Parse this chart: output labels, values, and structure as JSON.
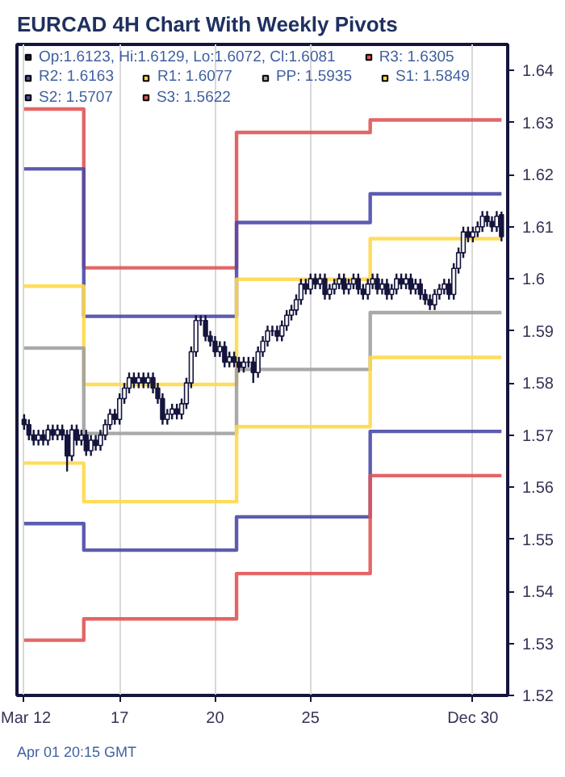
{
  "chart_data": {
    "type": "candlestick",
    "title": "EURCAD 4H Chart With Weekly Pivots",
    "annotations": [
      "Apr 01 20:15 GMT"
    ],
    "categories": [
      "Mar 12",
      null,
      null,
      null,
      null,
      null,
      null,
      null,
      null,
      null,
      null,
      null,
      null,
      null,
      null,
      null,
      null,
      null,
      null,
      null,
      "17",
      null,
      null,
      null,
      null,
      null,
      null,
      null,
      null,
      null,
      null,
      null,
      null,
      null,
      null,
      null,
      null,
      null,
      null,
      null,
      "20",
      null,
      null,
      null,
      null,
      null,
      null,
      null,
      null,
      null,
      null,
      null,
      null,
      null,
      null,
      null,
      null,
      null,
      null,
      null,
      "25",
      null,
      null,
      null,
      null,
      null,
      null,
      null,
      null,
      null,
      null,
      null,
      null,
      null,
      null,
      null,
      null,
      null,
      null,
      null,
      null,
      null,
      null,
      null,
      null,
      null,
      null,
      null,
      null,
      null,
      null,
      null,
      null,
      null,
      "Dec 30",
      null,
      null,
      null,
      null,
      null,
      null
    ],
    "ylim": [
      1.52,
      1.645
    ],
    "yticks": [
      1.52,
      1.53,
      1.54,
      1.55,
      1.56,
      1.57,
      1.58,
      1.59,
      1.6,
      1.61,
      1.62,
      1.63,
      1.64
    ],
    "grid": "x",
    "legend": "top",
    "series": [
      {
        "type": "candlestick",
        "name": "Op:1.6123, Hi:1.6129, Lo:1.6072, Cl:1.6081",
        "color": "#14143c",
        "ohlc": [
          [
            1.573,
            1.574,
            1.571,
            1.572
          ],
          [
            1.572,
            1.573,
            1.569,
            1.57
          ],
          [
            1.57,
            1.571,
            1.568,
            1.569
          ],
          [
            1.569,
            1.571,
            1.568,
            1.57
          ],
          [
            1.57,
            1.571,
            1.568,
            1.569
          ],
          [
            1.569,
            1.572,
            1.568,
            1.571
          ],
          [
            1.571,
            1.572,
            1.569,
            1.57
          ],
          [
            1.57,
            1.572,
            1.569,
            1.571
          ],
          [
            1.571,
            1.572,
            1.569,
            1.57
          ],
          [
            1.57,
            1.571,
            1.563,
            1.566
          ],
          [
            1.566,
            1.572,
            1.565,
            1.571
          ],
          [
            1.571,
            1.572,
            1.568,
            1.569
          ],
          [
            1.569,
            1.571,
            1.568,
            1.57
          ],
          [
            1.57,
            1.571,
            1.566,
            1.567
          ],
          [
            1.567,
            1.57,
            1.566,
            1.569
          ],
          [
            1.569,
            1.57,
            1.567,
            1.568
          ],
          [
            1.568,
            1.571,
            1.567,
            1.57
          ],
          [
            1.57,
            1.573,
            1.569,
            1.572
          ],
          [
            1.572,
            1.575,
            1.571,
            1.574
          ],
          [
            1.574,
            1.575,
            1.572,
            1.573
          ],
          [
            1.573,
            1.578,
            1.572,
            1.577
          ],
          [
            1.577,
            1.58,
            1.576,
            1.579
          ],
          [
            1.579,
            1.582,
            1.578,
            1.581
          ],
          [
            1.581,
            1.582,
            1.579,
            1.58
          ],
          [
            1.58,
            1.582,
            1.579,
            1.581
          ],
          [
            1.581,
            1.582,
            1.579,
            1.58
          ],
          [
            1.58,
            1.582,
            1.579,
            1.581
          ],
          [
            1.581,
            1.582,
            1.578,
            1.579
          ],
          [
            1.579,
            1.58,
            1.576,
            1.577
          ],
          [
            1.577,
            1.578,
            1.572,
            1.573
          ],
          [
            1.573,
            1.575,
            1.572,
            1.574
          ],
          [
            1.574,
            1.576,
            1.573,
            1.575
          ],
          [
            1.575,
            1.576,
            1.573,
            1.574
          ],
          [
            1.574,
            1.577,
            1.573,
            1.576
          ],
          [
            1.576,
            1.581,
            1.575,
            1.58
          ],
          [
            1.58,
            1.587,
            1.579,
            1.586
          ],
          [
            1.586,
            1.593,
            1.585,
            1.592
          ],
          [
            1.592,
            1.593,
            1.591,
            1.592
          ],
          [
            1.592,
            1.593,
            1.588,
            1.589
          ],
          [
            1.589,
            1.59,
            1.587,
            1.588
          ],
          [
            1.588,
            1.589,
            1.585,
            1.586
          ],
          [
            1.586,
            1.588,
            1.585,
            1.587
          ],
          [
            1.587,
            1.588,
            1.583,
            1.584
          ],
          [
            1.584,
            1.586,
            1.583,
            1.585
          ],
          [
            1.585,
            1.586,
            1.583,
            1.584
          ],
          [
            1.584,
            1.585,
            1.582,
            1.583
          ],
          [
            1.583,
            1.585,
            1.582,
            1.584
          ],
          [
            1.584,
            1.585,
            1.583,
            1.584
          ],
          [
            1.584,
            1.585,
            1.58,
            1.582
          ],
          [
            1.582,
            1.587,
            1.581,
            1.586
          ],
          [
            1.586,
            1.589,
            1.585,
            1.588
          ],
          [
            1.588,
            1.591,
            1.587,
            1.59
          ],
          [
            1.59,
            1.591,
            1.589,
            1.59
          ],
          [
            1.59,
            1.591,
            1.588,
            1.589
          ],
          [
            1.589,
            1.592,
            1.588,
            1.591
          ],
          [
            1.591,
            1.594,
            1.59,
            1.593
          ],
          [
            1.593,
            1.595,
            1.592,
            1.594
          ],
          [
            1.594,
            1.597,
            1.593,
            1.596
          ],
          [
            1.596,
            1.6,
            1.595,
            1.599
          ],
          [
            1.599,
            1.6,
            1.597,
            1.598
          ],
          [
            1.598,
            1.601,
            1.597,
            1.6
          ],
          [
            1.6,
            1.601,
            1.598,
            1.599
          ],
          [
            1.599,
            1.601,
            1.598,
            1.6
          ],
          [
            1.6,
            1.601,
            1.596,
            1.597
          ],
          [
            1.597,
            1.599,
            1.596,
            1.598
          ],
          [
            1.598,
            1.6,
            1.597,
            1.599
          ],
          [
            1.599,
            1.601,
            1.598,
            1.6
          ],
          [
            1.6,
            1.601,
            1.597,
            1.598
          ],
          [
            1.598,
            1.6,
            1.597,
            1.599
          ],
          [
            1.599,
            1.601,
            1.598,
            1.6
          ],
          [
            1.6,
            1.601,
            1.597,
            1.598
          ],
          [
            1.598,
            1.599,
            1.596,
            1.597
          ],
          [
            1.597,
            1.6,
            1.596,
            1.599
          ],
          [
            1.599,
            1.601,
            1.598,
            1.6
          ],
          [
            1.6,
            1.601,
            1.597,
            1.598
          ],
          [
            1.598,
            1.6,
            1.597,
            1.599
          ],
          [
            1.599,
            1.6,
            1.596,
            1.597
          ],
          [
            1.597,
            1.599,
            1.596,
            1.598
          ],
          [
            1.598,
            1.601,
            1.597,
            1.6
          ],
          [
            1.6,
            1.601,
            1.598,
            1.599
          ],
          [
            1.599,
            1.601,
            1.598,
            1.6
          ],
          [
            1.6,
            1.601,
            1.597,
            1.598
          ],
          [
            1.598,
            1.6,
            1.597,
            1.599
          ],
          [
            1.599,
            1.6,
            1.596,
            1.597
          ],
          [
            1.597,
            1.598,
            1.595,
            1.596
          ],
          [
            1.596,
            1.597,
            1.594,
            1.595
          ],
          [
            1.595,
            1.598,
            1.594,
            1.597
          ],
          [
            1.597,
            1.599,
            1.596,
            1.598
          ],
          [
            1.598,
            1.6,
            1.597,
            1.599
          ],
          [
            1.599,
            1.6,
            1.596,
            1.597
          ],
          [
            1.597,
            1.603,
            1.596,
            1.602
          ],
          [
            1.602,
            1.606,
            1.601,
            1.605
          ],
          [
            1.605,
            1.61,
            1.604,
            1.609
          ],
          [
            1.609,
            1.61,
            1.607,
            1.608
          ],
          [
            1.608,
            1.61,
            1.607,
            1.609
          ],
          [
            1.609,
            1.611,
            1.608,
            1.61
          ],
          [
            1.61,
            1.613,
            1.609,
            1.612
          ],
          [
            1.612,
            1.613,
            1.61,
            1.611
          ],
          [
            1.611,
            1.612,
            1.609,
            1.61
          ],
          [
            1.61,
            1.613,
            1.609,
            1.612
          ],
          [
            1.6123,
            1.6129,
            1.6072,
            1.6081
          ]
        ]
      },
      {
        "type": "step",
        "name": "R3: 1.6305",
        "color": "#e05555",
        "values": [
          1.6326,
          1.6326,
          1.6326,
          1.6326,
          1.6326,
          1.6326,
          1.6326,
          1.6326,
          1.6326,
          1.6326,
          1.6326,
          1.6326,
          1.6326,
          1.6021,
          1.6021,
          1.6021,
          1.6021,
          1.6021,
          1.6021,
          1.6021,
          1.6021,
          1.6021,
          1.6021,
          1.6021,
          1.6021,
          1.6021,
          1.6021,
          1.6021,
          1.6021,
          1.6021,
          1.6021,
          1.6021,
          1.6021,
          1.6021,
          1.6021,
          1.6021,
          1.6021,
          1.6021,
          1.6021,
          1.6021,
          1.6021,
          1.6021,
          1.6021,
          1.6021,
          1.6021,
          1.6281,
          1.6281,
          1.6281,
          1.6281,
          1.6281,
          1.6281,
          1.6281,
          1.6281,
          1.6281,
          1.6281,
          1.6281,
          1.6281,
          1.6281,
          1.6281,
          1.6281,
          1.6281,
          1.6281,
          1.6281,
          1.6281,
          1.6281,
          1.6281,
          1.6281,
          1.6281,
          1.6281,
          1.6281,
          1.6281,
          1.6281,
          1.6281,
          1.6305,
          1.6305,
          1.6305,
          1.6305,
          1.6305,
          1.6305,
          1.6305,
          1.6305,
          1.6305,
          1.6305,
          1.6305,
          1.6305,
          1.6305,
          1.6305,
          1.6305,
          1.6305,
          1.6305,
          1.6305,
          1.6305,
          1.6305,
          1.6305,
          1.6305,
          1.6305,
          1.6305,
          1.6305,
          1.6305,
          1.6305,
          1.6305
        ]
      },
      {
        "type": "step",
        "name": "R2: 1.6163",
        "color": "#4a4aa8",
        "values": [
          1.6211,
          1.6211,
          1.6211,
          1.6211,
          1.6211,
          1.6211,
          1.6211,
          1.6211,
          1.6211,
          1.6211,
          1.6211,
          1.6211,
          1.6211,
          1.5928,
          1.5928,
          1.5928,
          1.5928,
          1.5928,
          1.5928,
          1.5928,
          1.5928,
          1.5928,
          1.5928,
          1.5928,
          1.5928,
          1.5928,
          1.5928,
          1.5928,
          1.5928,
          1.5928,
          1.5928,
          1.5928,
          1.5928,
          1.5928,
          1.5928,
          1.5928,
          1.5928,
          1.5928,
          1.5928,
          1.5928,
          1.5928,
          1.5928,
          1.5928,
          1.5928,
          1.5928,
          1.6108,
          1.6108,
          1.6108,
          1.6108,
          1.6108,
          1.6108,
          1.6108,
          1.6108,
          1.6108,
          1.6108,
          1.6108,
          1.6108,
          1.6108,
          1.6108,
          1.6108,
          1.6108,
          1.6108,
          1.6108,
          1.6108,
          1.6108,
          1.6108,
          1.6108,
          1.6108,
          1.6108,
          1.6108,
          1.6108,
          1.6108,
          1.6108,
          1.6163,
          1.6163,
          1.6163,
          1.6163,
          1.6163,
          1.6163,
          1.6163,
          1.6163,
          1.6163,
          1.6163,
          1.6163,
          1.6163,
          1.6163,
          1.6163,
          1.6163,
          1.6163,
          1.6163,
          1.6163,
          1.6163,
          1.6163,
          1.6163,
          1.6163,
          1.6163,
          1.6163,
          1.6163,
          1.6163,
          1.6163,
          1.6163
        ]
      },
      {
        "type": "step",
        "name": "R1: 1.6077",
        "color": "#ffd84a",
        "values": [
          1.5986,
          1.5986,
          1.5986,
          1.5986,
          1.5986,
          1.5986,
          1.5986,
          1.5986,
          1.5986,
          1.5986,
          1.5986,
          1.5986,
          1.5986,
          1.5797,
          1.5797,
          1.5797,
          1.5797,
          1.5797,
          1.5797,
          1.5797,
          1.5797,
          1.5797,
          1.5797,
          1.5797,
          1.5797,
          1.5797,
          1.5797,
          1.5797,
          1.5797,
          1.5797,
          1.5797,
          1.5797,
          1.5797,
          1.5797,
          1.5797,
          1.5797,
          1.5797,
          1.5797,
          1.5797,
          1.5797,
          1.5797,
          1.5797,
          1.5797,
          1.5797,
          1.5797,
          1.5999,
          1.5999,
          1.5999,
          1.5999,
          1.5999,
          1.5999,
          1.5999,
          1.5999,
          1.5999,
          1.5999,
          1.5999,
          1.5999,
          1.5999,
          1.5999,
          1.5999,
          1.5999,
          1.5999,
          1.5999,
          1.5999,
          1.5999,
          1.5999,
          1.5999,
          1.5999,
          1.5999,
          1.5999,
          1.5999,
          1.5999,
          1.5999,
          1.6077,
          1.6077,
          1.6077,
          1.6077,
          1.6077,
          1.6077,
          1.6077,
          1.6077,
          1.6077,
          1.6077,
          1.6077,
          1.6077,
          1.6077,
          1.6077,
          1.6077,
          1.6077,
          1.6077,
          1.6077,
          1.6077,
          1.6077,
          1.6077,
          1.6077,
          1.6077,
          1.6077,
          1.6077,
          1.6077,
          1.6077,
          1.6077
        ]
      },
      {
        "type": "step",
        "name": "PP: 1.5935",
        "color": "#a0a0a0",
        "values": [
          1.5867,
          1.5867,
          1.5867,
          1.5867,
          1.5867,
          1.5867,
          1.5867,
          1.5867,
          1.5867,
          1.5867,
          1.5867,
          1.5867,
          1.5867,
          1.5703,
          1.5703,
          1.5703,
          1.5703,
          1.5703,
          1.5703,
          1.5703,
          1.5703,
          1.5703,
          1.5703,
          1.5703,
          1.5703,
          1.5703,
          1.5703,
          1.5703,
          1.5703,
          1.5703,
          1.5703,
          1.5703,
          1.5703,
          1.5703,
          1.5703,
          1.5703,
          1.5703,
          1.5703,
          1.5703,
          1.5703,
          1.5703,
          1.5703,
          1.5703,
          1.5703,
          1.5703,
          1.5826,
          1.5826,
          1.5826,
          1.5826,
          1.5826,
          1.5826,
          1.5826,
          1.5826,
          1.5826,
          1.5826,
          1.5826,
          1.5826,
          1.5826,
          1.5826,
          1.5826,
          1.5826,
          1.5826,
          1.5826,
          1.5826,
          1.5826,
          1.5826,
          1.5826,
          1.5826,
          1.5826,
          1.5826,
          1.5826,
          1.5826,
          1.5826,
          1.5935,
          1.5935,
          1.5935,
          1.5935,
          1.5935,
          1.5935,
          1.5935,
          1.5935,
          1.5935,
          1.5935,
          1.5935,
          1.5935,
          1.5935,
          1.5935,
          1.5935,
          1.5935,
          1.5935,
          1.5935,
          1.5935,
          1.5935,
          1.5935,
          1.5935,
          1.5935,
          1.5935,
          1.5935,
          1.5935,
          1.5935,
          1.5935
        ]
      },
      {
        "type": "step",
        "name": "S1: 1.5849",
        "color": "#ffd84a",
        "values": [
          1.5646,
          1.5646,
          1.5646,
          1.5646,
          1.5646,
          1.5646,
          1.5646,
          1.5646,
          1.5646,
          1.5646,
          1.5646,
          1.5646,
          1.5646,
          1.5572,
          1.5572,
          1.5572,
          1.5572,
          1.5572,
          1.5572,
          1.5572,
          1.5572,
          1.5572,
          1.5572,
          1.5572,
          1.5572,
          1.5572,
          1.5572,
          1.5572,
          1.5572,
          1.5572,
          1.5572,
          1.5572,
          1.5572,
          1.5572,
          1.5572,
          1.5572,
          1.5572,
          1.5572,
          1.5572,
          1.5572,
          1.5572,
          1.5572,
          1.5572,
          1.5572,
          1.5572,
          1.5716,
          1.5716,
          1.5716,
          1.5716,
          1.5716,
          1.5716,
          1.5716,
          1.5716,
          1.5716,
          1.5716,
          1.5716,
          1.5716,
          1.5716,
          1.5716,
          1.5716,
          1.5716,
          1.5716,
          1.5716,
          1.5716,
          1.5716,
          1.5716,
          1.5716,
          1.5716,
          1.5716,
          1.5716,
          1.5716,
          1.5716,
          1.5716,
          1.5849,
          1.5849,
          1.5849,
          1.5849,
          1.5849,
          1.5849,
          1.5849,
          1.5849,
          1.5849,
          1.5849,
          1.5849,
          1.5849,
          1.5849,
          1.5849,
          1.5849,
          1.5849,
          1.5849,
          1.5849,
          1.5849,
          1.5849,
          1.5849,
          1.5849,
          1.5849,
          1.5849,
          1.5849,
          1.5849,
          1.5849,
          1.5849
        ]
      },
      {
        "type": "step",
        "name": "S2: 1.5707",
        "color": "#4a4aa8",
        "values": [
          1.553,
          1.553,
          1.553,
          1.553,
          1.553,
          1.553,
          1.553,
          1.553,
          1.553,
          1.553,
          1.553,
          1.553,
          1.553,
          1.5479,
          1.5479,
          1.5479,
          1.5479,
          1.5479,
          1.5479,
          1.5479,
          1.5479,
          1.5479,
          1.5479,
          1.5479,
          1.5479,
          1.5479,
          1.5479,
          1.5479,
          1.5479,
          1.5479,
          1.5479,
          1.5479,
          1.5479,
          1.5479,
          1.5479,
          1.5479,
          1.5479,
          1.5479,
          1.5479,
          1.5479,
          1.5479,
          1.5479,
          1.5479,
          1.5479,
          1.5479,
          1.5543,
          1.5543,
          1.5543,
          1.5543,
          1.5543,
          1.5543,
          1.5543,
          1.5543,
          1.5543,
          1.5543,
          1.5543,
          1.5543,
          1.5543,
          1.5543,
          1.5543,
          1.5543,
          1.5543,
          1.5543,
          1.5543,
          1.5543,
          1.5543,
          1.5543,
          1.5543,
          1.5543,
          1.5543,
          1.5543,
          1.5543,
          1.5543,
          1.5707,
          1.5707,
          1.5707,
          1.5707,
          1.5707,
          1.5707,
          1.5707,
          1.5707,
          1.5707,
          1.5707,
          1.5707,
          1.5707,
          1.5707,
          1.5707,
          1.5707,
          1.5707,
          1.5707,
          1.5707,
          1.5707,
          1.5707,
          1.5707,
          1.5707,
          1.5707,
          1.5707,
          1.5707,
          1.5707,
          1.5707,
          1.5707
        ]
      },
      {
        "type": "step",
        "name": "S3: 1.5622",
        "color": "#e05555",
        "values": [
          1.5306,
          1.5306,
          1.5306,
          1.5306,
          1.5306,
          1.5306,
          1.5306,
          1.5306,
          1.5306,
          1.5306,
          1.5306,
          1.5306,
          1.5306,
          1.5347,
          1.5347,
          1.5347,
          1.5347,
          1.5347,
          1.5347,
          1.5347,
          1.5347,
          1.5347,
          1.5347,
          1.5347,
          1.5347,
          1.5347,
          1.5347,
          1.5347,
          1.5347,
          1.5347,
          1.5347,
          1.5347,
          1.5347,
          1.5347,
          1.5347,
          1.5347,
          1.5347,
          1.5347,
          1.5347,
          1.5347,
          1.5347,
          1.5347,
          1.5347,
          1.5347,
          1.5347,
          1.5434,
          1.5434,
          1.5434,
          1.5434,
          1.5434,
          1.5434,
          1.5434,
          1.5434,
          1.5434,
          1.5434,
          1.5434,
          1.5434,
          1.5434,
          1.5434,
          1.5434,
          1.5434,
          1.5434,
          1.5434,
          1.5434,
          1.5434,
          1.5434,
          1.5434,
          1.5434,
          1.5434,
          1.5434,
          1.5434,
          1.5434,
          1.5434,
          1.5622,
          1.5622,
          1.5622,
          1.5622,
          1.5622,
          1.5622,
          1.5622,
          1.5622,
          1.5622,
          1.5622,
          1.5622,
          1.5622,
          1.5622,
          1.5622,
          1.5622,
          1.5622,
          1.5622,
          1.5622,
          1.5622,
          1.5622,
          1.5622,
          1.5622,
          1.5622,
          1.5622,
          1.5622,
          1.5622,
          1.5622,
          1.5622
        ]
      }
    ]
  }
}
